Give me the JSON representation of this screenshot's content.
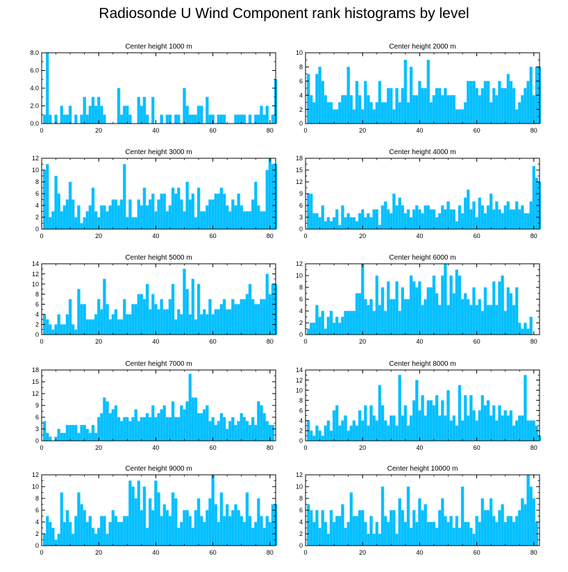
{
  "title": "Radiosonde U Wind Component rank histograms by level",
  "colors": {
    "bar": "#00bfff",
    "bar_edge": "#5ad0ff",
    "axis": "#000000"
  },
  "chart_data": [
    {
      "type": "bar",
      "title": "Center height 1000 m",
      "xlim": [
        0,
        82
      ],
      "ylim": [
        0,
        8
      ],
      "xticks": [
        0,
        20,
        40,
        60,
        80
      ],
      "xtick_labels": [
        "0",
        "20",
        "40",
        "60",
        "80"
      ],
      "yticks": [
        0,
        2,
        4,
        6,
        8
      ],
      "ytick_labels": [
        "0.0",
        "2.0",
        "4.0",
        "6.0",
        "8.0"
      ],
      "values": [
        1,
        8,
        1,
        0,
        1,
        0,
        2,
        1,
        1,
        2,
        0,
        1,
        0,
        1,
        3,
        1,
        2,
        3,
        2,
        3,
        2,
        1,
        0,
        0,
        0,
        0,
        4,
        1,
        2,
        2,
        1,
        0,
        0,
        3,
        2,
        3,
        1,
        0,
        3,
        0,
        0,
        1,
        0,
        1,
        1,
        0,
        1,
        1,
        0,
        4,
        2,
        1,
        1,
        1,
        2,
        2,
        0,
        3,
        1,
        1,
        0,
        1,
        1,
        1,
        0,
        0,
        0,
        1,
        1,
        1,
        1,
        0,
        1,
        0,
        1,
        1,
        2,
        1,
        2,
        0,
        1,
        5
      ]
    },
    {
      "type": "bar",
      "title": "Center height 2000 m",
      "xlim": [
        0,
        82
      ],
      "ylim": [
        0,
        10
      ],
      "xticks": [
        0,
        20,
        40,
        60,
        80
      ],
      "xtick_labels": [
        "0",
        "20",
        "40",
        "60",
        "80"
      ],
      "yticks": [
        0,
        2,
        4,
        6,
        8,
        10
      ],
      "ytick_labels": [
        "0",
        "2",
        "4",
        "6",
        "8",
        "10"
      ],
      "values": [
        7,
        4,
        3,
        7,
        8,
        6,
        4,
        3,
        3,
        2,
        2,
        3,
        4,
        4,
        8,
        4,
        2,
        6,
        4,
        2,
        6,
        4,
        3,
        2,
        3,
        6,
        3,
        3,
        5,
        5,
        2,
        5,
        3,
        5,
        9,
        3,
        8,
        4,
        4,
        6,
        5,
        5,
        9,
        3,
        4,
        5,
        5,
        4,
        5,
        4,
        4,
        4,
        2,
        2,
        2,
        3,
        6,
        6,
        6,
        5,
        4,
        5,
        6,
        6,
        3,
        5,
        4,
        6,
        5,
        5,
        7,
        6,
        5,
        2,
        3,
        4,
        5,
        6,
        8,
        4,
        8,
        8
      ]
    },
    {
      "type": "bar",
      "title": "Center height 3000 m",
      "xlim": [
        0,
        82
      ],
      "ylim": [
        0,
        12
      ],
      "xticks": [
        0,
        20,
        40,
        60,
        80
      ],
      "xtick_labels": [
        "0",
        "20",
        "40",
        "60",
        "80"
      ],
      "yticks": [
        0,
        2,
        4,
        6,
        8,
        10,
        12
      ],
      "ytick_labels": [
        "0",
        "2",
        "4",
        "6",
        "8",
        "10",
        "12"
      ],
      "values": [
        10,
        11,
        2,
        3,
        9,
        6,
        3,
        4,
        5,
        8,
        5,
        2,
        4,
        1,
        2,
        3,
        4,
        7,
        3,
        2,
        4,
        4,
        3,
        4,
        5,
        5,
        4,
        5,
        11,
        2,
        5,
        2,
        2,
        5,
        4,
        7,
        4,
        5,
        6,
        3,
        5,
        6,
        6,
        3,
        4,
        7,
        6,
        7,
        5,
        3,
        8,
        5,
        6,
        2,
        7,
        3,
        3,
        4,
        5,
        5,
        6,
        6,
        7,
        6,
        4,
        3,
        5,
        4,
        6,
        4,
        3,
        3,
        3,
        5,
        8,
        4,
        3,
        3,
        10,
        12,
        11,
        11
      ]
    },
    {
      "type": "bar",
      "title": "Center height 4000 m",
      "xlim": [
        0,
        82
      ],
      "ylim": [
        0,
        18
      ],
      "xticks": [
        0,
        20,
        40,
        60,
        80
      ],
      "xtick_labels": [
        "0",
        "20",
        "40",
        "60",
        "80"
      ],
      "yticks": [
        0,
        3,
        6,
        9,
        12,
        15,
        18
      ],
      "ytick_labels": [
        "0",
        "3",
        "6",
        "9",
        "12",
        "15",
        "18"
      ],
      "values": [
        9,
        9,
        4,
        4,
        3,
        6,
        2,
        3,
        2,
        3,
        5,
        1,
        6,
        3,
        4,
        3,
        3,
        2,
        4,
        5,
        3,
        4,
        3,
        5,
        5,
        1,
        6,
        7,
        5,
        4,
        9,
        6,
        8,
        6,
        4,
        5,
        3,
        5,
        6,
        5,
        4,
        6,
        6,
        5,
        5,
        3,
        4,
        6,
        5,
        7,
        5,
        5,
        2,
        6,
        4,
        8,
        10,
        5,
        7,
        3,
        8,
        6,
        4,
        6,
        9,
        5,
        7,
        5,
        4,
        6,
        7,
        5,
        5,
        7,
        5,
        6,
        4,
        4,
        7,
        16,
        13,
        12
      ]
    },
    {
      "type": "bar",
      "title": "Center height 5000 m",
      "xlim": [
        0,
        82
      ],
      "ylim": [
        0,
        14
      ],
      "xticks": [
        0,
        20,
        40,
        60,
        80
      ],
      "xtick_labels": [
        "0",
        "20",
        "40",
        "60",
        "80"
      ],
      "yticks": [
        0,
        2,
        4,
        6,
        8,
        10,
        12,
        14
      ],
      "ytick_labels": [
        "0",
        "2",
        "4",
        "6",
        "8",
        "10",
        "12",
        "14"
      ],
      "values": [
        4,
        3,
        2,
        1,
        2,
        4,
        2,
        2,
        4,
        7,
        2,
        1,
        9,
        6,
        6,
        3,
        3,
        3,
        4,
        7,
        5,
        11,
        6,
        3,
        4,
        5,
        3,
        3,
        7,
        4,
        4,
        6,
        6,
        8,
        8,
        7,
        10,
        5,
        8,
        6,
        5,
        7,
        5,
        5,
        7,
        10,
        3,
        5,
        4,
        13,
        9,
        4,
        11,
        3,
        10,
        4,
        5,
        4,
        7,
        4,
        5,
        5,
        6,
        7,
        5,
        5,
        7,
        6,
        6,
        7,
        7,
        8,
        10,
        7,
        6,
        6,
        7,
        7,
        12,
        8,
        10,
        10
      ]
    },
    {
      "type": "bar",
      "title": "Center height 6000 m",
      "xlim": [
        0,
        82
      ],
      "ylim": [
        0,
        12
      ],
      "xticks": [
        0,
        20,
        40,
        60,
        80
      ],
      "xtick_labels": [
        "0",
        "20",
        "40",
        "60",
        "80"
      ],
      "yticks": [
        0,
        2,
        4,
        6,
        8,
        10,
        12
      ],
      "ytick_labels": [
        "0",
        "2",
        "4",
        "6",
        "8",
        "10",
        "12"
      ],
      "values": [
        1,
        2,
        2,
        5,
        3,
        4,
        1,
        3,
        4,
        2,
        3,
        2,
        3,
        4,
        4,
        4,
        4,
        7,
        7,
        12,
        6,
        5,
        6,
        4,
        10,
        5,
        8,
        4,
        9,
        6,
        6,
        9,
        4,
        8,
        6,
        6,
        10,
        9,
        8,
        9,
        5,
        6,
        8,
        8,
        10,
        7,
        5,
        10,
        12,
        5,
        10,
        7,
        11,
        10,
        6,
        7,
        6,
        5,
        8,
        5,
        6,
        4,
        8,
        5,
        5,
        9,
        5,
        9,
        10,
        4,
        8,
        7,
        5,
        8,
        2,
        1,
        2,
        1,
        3
      ]
    },
    {
      "type": "bar",
      "title": "Center height 7000 m",
      "xlim": [
        0,
        82
      ],
      "ylim": [
        0,
        18
      ],
      "xticks": [
        0,
        20,
        40,
        60,
        80
      ],
      "xtick_labels": [
        "0",
        "20",
        "40",
        "60",
        "80"
      ],
      "yticks": [
        0,
        3,
        6,
        9,
        12,
        15,
        18
      ],
      "ytick_labels": [
        "0",
        "3",
        "6",
        "9",
        "12",
        "15",
        "18"
      ],
      "values": [
        5,
        2,
        1,
        0,
        1,
        3,
        2,
        2,
        4,
        4,
        4,
        4,
        2,
        4,
        4,
        3,
        2,
        4,
        2,
        6,
        7,
        11,
        10,
        7,
        8,
        9,
        6,
        5,
        6,
        6,
        5,
        6,
        8,
        5,
        6,
        6,
        7,
        6,
        9,
        6,
        7,
        8,
        9,
        6,
        6,
        10,
        6,
        6,
        9,
        8,
        10,
        17,
        11,
        11,
        7,
        7,
        8,
        9,
        5,
        6,
        4,
        5,
        7,
        6,
        3,
        5,
        6,
        4,
        5,
        7,
        6,
        5,
        4,
        6,
        4,
        10,
        9,
        7,
        5,
        4,
        4
      ]
    },
    {
      "type": "bar",
      "title": "Center height 8000 m",
      "xlim": [
        0,
        82
      ],
      "ylim": [
        0,
        14
      ],
      "xticks": [
        0,
        20,
        40,
        60,
        80
      ],
      "xtick_labels": [
        "0",
        "20",
        "40",
        "60",
        "80"
      ],
      "yticks": [
        0,
        2,
        4,
        6,
        8,
        10,
        12,
        14
      ],
      "ytick_labels": [
        "0",
        "2",
        "4",
        "6",
        "8",
        "10",
        "12",
        "14"
      ],
      "values": [
        4,
        2,
        1,
        3,
        2,
        1,
        3,
        4,
        2,
        6,
        7,
        3,
        4,
        5,
        2,
        3,
        4,
        3,
        6,
        4,
        7,
        3,
        7,
        5,
        4,
        11,
        7,
        4,
        3,
        5,
        5,
        3,
        13,
        5,
        7,
        3,
        5,
        8,
        12,
        6,
        9,
        5,
        8,
        8,
        7,
        9,
        5,
        8,
        5,
        10,
        4,
        5,
        3,
        11,
        4,
        9,
        5,
        9,
        6,
        4,
        6,
        9,
        7,
        8,
        5,
        7,
        4,
        7,
        5,
        6,
        5,
        6,
        3,
        4,
        5,
        5,
        13,
        4,
        4,
        4,
        3,
        1
      ]
    },
    {
      "type": "bar",
      "title": "Center height 9000 m",
      "xlim": [
        0,
        82
      ],
      "ylim": [
        0,
        12
      ],
      "xticks": [
        0,
        20,
        40,
        60,
        80
      ],
      "xtick_labels": [
        "0",
        "20",
        "40",
        "60",
        "80"
      ],
      "yticks": [
        0,
        2,
        4,
        6,
        8,
        10,
        12
      ],
      "ytick_labels": [
        "0",
        "2",
        "4",
        "6",
        "8",
        "10",
        "12"
      ],
      "values": [
        2,
        5,
        4,
        3,
        1,
        2,
        9,
        4,
        6,
        4,
        2,
        5,
        9,
        7,
        6,
        4,
        5,
        3,
        2,
        3,
        5,
        5,
        2,
        4,
        6,
        5,
        4,
        4,
        5,
        5,
        11,
        10,
        8,
        11,
        6,
        10,
        3,
        8,
        6,
        11,
        9,
        5,
        7,
        6,
        5,
        9,
        8,
        3,
        4,
        6,
        6,
        5,
        3,
        6,
        8,
        5,
        4,
        6,
        8,
        12,
        7,
        4,
        9,
        5,
        7,
        5,
        6,
        7,
        6,
        5,
        4,
        9,
        5,
        3,
        4,
        8,
        5,
        3,
        5,
        4,
        7,
        7
      ]
    },
    {
      "type": "bar",
      "title": "Center height 10000 m",
      "xlim": [
        0,
        82
      ],
      "ylim": [
        0,
        12
      ],
      "xticks": [
        0,
        20,
        40,
        60,
        80
      ],
      "xtick_labels": [
        "0",
        "20",
        "40",
        "60",
        "80"
      ],
      "yticks": [
        0,
        2,
        4,
        6,
        8,
        10,
        12
      ],
      "ytick_labels": [
        "0",
        "2",
        "4",
        "6",
        "8",
        "10",
        "12"
      ],
      "values": [
        7,
        6,
        4,
        6,
        3,
        6,
        4,
        2,
        6,
        4,
        5,
        5,
        7,
        3,
        4,
        9,
        5,
        5,
        6,
        6,
        4,
        2,
        5,
        2,
        4,
        2,
        10,
        5,
        4,
        6,
        6,
        2,
        8,
        6,
        4,
        10,
        3,
        6,
        4,
        8,
        6,
        7,
        4,
        4,
        4,
        3,
        6,
        8,
        5,
        4,
        5,
        3,
        5,
        3,
        10,
        4,
        4,
        3,
        2,
        5,
        4,
        8,
        6,
        6,
        8,
        5,
        4,
        6,
        7,
        4,
        5,
        5,
        4,
        5,
        6,
        8,
        7,
        12,
        10,
        8,
        4
      ]
    }
  ]
}
